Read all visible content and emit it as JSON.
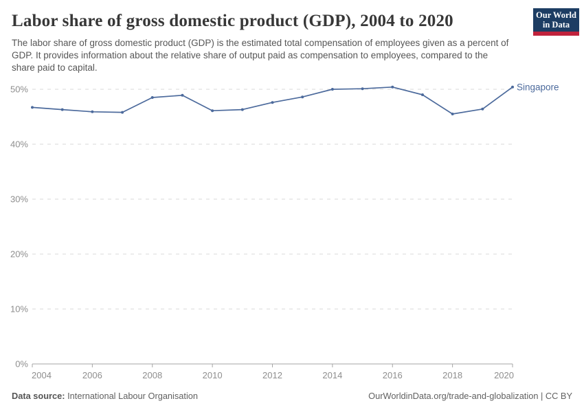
{
  "header": {
    "title": "Labor share of gross domestic product (GDP), 2004 to 2020",
    "subtitle": "The labor share of gross domestic product (GDP) is the estimated total compensation of employees given as a percent of GDP. It provides information about the relative share of output paid as compensation to employees, compared to the share paid to capital.",
    "logo": {
      "line1": "Our World",
      "line2": "in Data",
      "bg_color": "#1d3d63",
      "stripe_color": "#c0223c"
    }
  },
  "chart_data": {
    "type": "line",
    "title": "Labor share of gross domestic product (GDP), 2004 to 2020",
    "x": [
      2004,
      2005,
      2006,
      2007,
      2008,
      2009,
      2010,
      2011,
      2012,
      2013,
      2014,
      2015,
      2016,
      2017,
      2018,
      2019,
      2020
    ],
    "series": [
      {
        "name": "Singapore",
        "color": "#4c6a9c",
        "values": [
          46.7,
          46.3,
          45.9,
          45.8,
          48.5,
          48.9,
          46.1,
          46.3,
          47.6,
          48.6,
          50.0,
          50.1,
          50.4,
          49.0,
          45.5,
          46.4,
          50.4
        ]
      }
    ],
    "xlabel": "",
    "ylabel": "",
    "ylim": [
      0,
      50
    ],
    "yticks": [
      0,
      10,
      20,
      30,
      40,
      50
    ],
    "ytick_suffix": "%",
    "xticks": [
      2004,
      2006,
      2008,
      2010,
      2012,
      2014,
      2016,
      2018,
      2020
    ],
    "grid": "dashed-horizontal",
    "legend_position": "end-of-line",
    "marker": "dot"
  },
  "footer": {
    "datasource_label": "Data source:",
    "datasource_value": "International Labour Organisation",
    "right_text": "OurWorldinData.org/trade-and-globalization | CC BY"
  }
}
